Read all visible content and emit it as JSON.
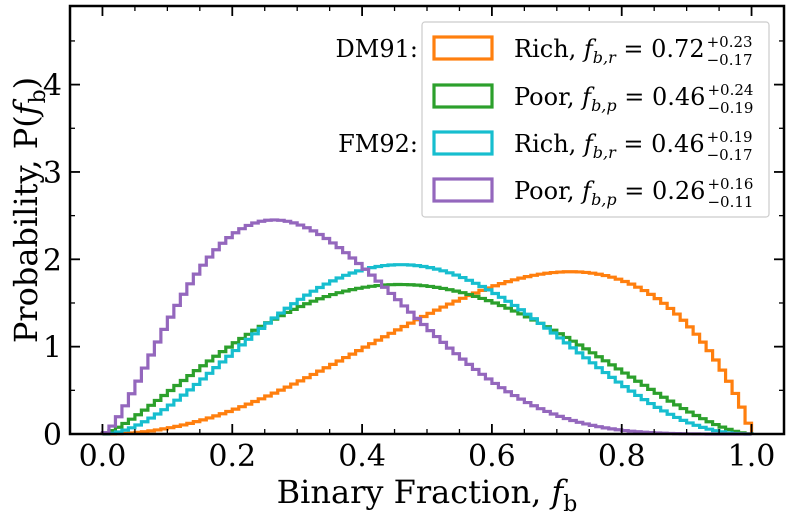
{
  "chart_data": {
    "type": "histogram-step",
    "xlabel_text": "Binary Fraction, ",
    "xlabel_symbol": "f",
    "xlabel_subscript": "b",
    "ylabel_text": "Probability, P(",
    "ylabel_symbol": "f",
    "ylabel_subscript": "b",
    "ylabel_close": ")",
    "xlim": [
      -0.05,
      1.05
    ],
    "ylim": [
      0,
      4.9
    ],
    "xticks": [
      0.0,
      0.2,
      0.4,
      0.6,
      0.8,
      1.0
    ],
    "xtick_labels": [
      "0.0",
      "0.2",
      "0.4",
      "0.6",
      "0.8",
      "1.0"
    ],
    "yticks": [
      0,
      1,
      2,
      3,
      4
    ],
    "ytick_labels": [
      "0",
      "1",
      "2",
      "3",
      "4"
    ],
    "legend_placement": "top-right",
    "legend_groups": [
      {
        "label": "DM91:",
        "series_index": 0
      },
      {
        "label": "FM92:",
        "series_index": 2
      }
    ],
    "series": [
      {
        "name": "Rich",
        "symbol_sub": "b,r",
        "value": "0.72",
        "upper": "+0.23",
        "lower": "−0.17",
        "color": "#ff7f0e",
        "alpha": 3.2,
        "beta": 1.85
      },
      {
        "name": "Poor",
        "symbol_sub": "b,p",
        "value": "0.46",
        "upper": "+0.24",
        "lower": "−0.19",
        "color": "#2ca02c",
        "alpha": 2.4,
        "beta": 2.65
      },
      {
        "name": "Rich",
        "symbol_sub": "b,r",
        "value": "0.46",
        "upper": "+0.19",
        "lower": "−0.17",
        "color": "#17becf",
        "alpha": 3.0,
        "beta": 3.35
      },
      {
        "name": "Poor",
        "symbol_sub": "b,p",
        "value": "0.26",
        "upper": "+0.16",
        "lower": "−0.11",
        "color": "#9467bd",
        "alpha": 2.6,
        "beta": 5.45
      }
    ]
  }
}
